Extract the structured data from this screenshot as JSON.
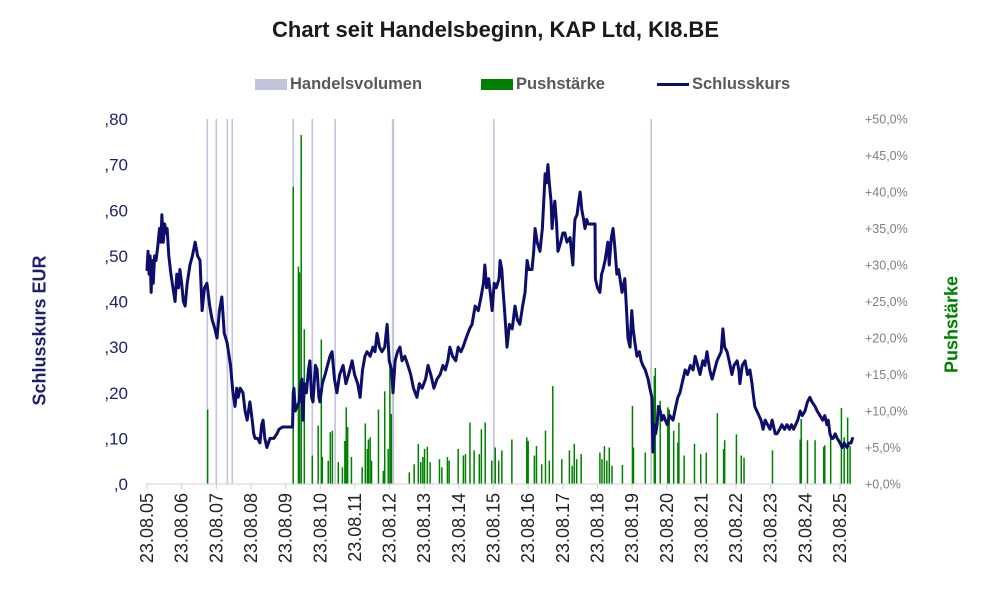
{
  "chart_data": {
    "type": "line",
    "title": "Chart seit Handelsbeginn, KAP Ltd, KI8.BE",
    "grid": false,
    "legend": {
      "position": "top",
      "items": [
        {
          "label": "Handelsvolumen",
          "kind": "swatch",
          "color": "#c3c3dc"
        },
        {
          "label": "Pushstärke",
          "kind": "swatch",
          "color": "#008000"
        },
        {
          "label": "Schlusskurs",
          "kind": "line",
          "color": "#0d0d6b"
        }
      ]
    },
    "x_axis": {
      "label": "",
      "range": [
        2005.64,
        2026.0
      ],
      "ticks": [
        2005.64,
        2006.64,
        2007.64,
        2008.64,
        2009.64,
        2010.64,
        2011.64,
        2012.64,
        2013.64,
        2014.64,
        2015.64,
        2016.64,
        2017.64,
        2018.64,
        2019.64,
        2020.64,
        2021.64,
        2022.64,
        2023.64,
        2024.64,
        2025.64
      ],
      "tick_labels": [
        "23.08.05",
        "23.08.06",
        "23.08.07",
        "23.08.08",
        "23.08.09",
        "23.08.10",
        "23.08.11",
        "23.08.12",
        "23.08.13",
        "23.08.14",
        "23.08.15",
        "23.08.16",
        "23.08.17",
        "23.08.18",
        "23.08.19",
        "23.08.20",
        "23.08.21",
        "23.08.22",
        "23.08.23",
        "23.08.24",
        "23.08.25"
      ]
    },
    "y_axis_left": {
      "label": "Schlusskurs EUR",
      "range": [
        0,
        0.8
      ],
      "ticks": [
        0,
        0.1,
        0.2,
        0.3,
        0.4,
        0.5,
        0.6,
        0.7,
        0.8
      ],
      "tick_labels": [
        ",0",
        ",10",
        ",20",
        ",30",
        ",40",
        ",50",
        ",60",
        ",70",
        ",80"
      ]
    },
    "y_axis_right": {
      "label": "Pushstärke",
      "range": [
        0,
        50
      ],
      "ticks": [
        0,
        5,
        10,
        15,
        20,
        25,
        30,
        35,
        40,
        45,
        50
      ],
      "tick_labels": [
        "+0,0%",
        "+5,0%",
        "+10,0%",
        "+15,0%",
        "+20,0%",
        "+25,0%",
        "+30,0%",
        "+35,0%",
        "+40,0%",
        "+45,0%",
        "+50,0%"
      ]
    },
    "series": [
      {
        "name": "Handelsvolumen",
        "type": "bar",
        "axis": "none",
        "color": "#c3c3dc",
        "clipped_at_top": true,
        "x": [
          2007.38,
          2007.64,
          2007.96,
          2008.1,
          2009.86,
          2010.41,
          2011.07,
          2012.73,
          2012.75,
          2015.65,
          2020.19
        ]
      },
      {
        "name": "Pushstärke",
        "type": "bar",
        "axis": "right",
        "color": "#008000",
        "x": [
          2007.39,
          2009.86,
          2010.01,
          2010.04,
          2010.09,
          2010.18,
          2010.41,
          2010.58,
          2010.67,
          2010.7,
          2010.87,
          2010.93,
          2010.99,
          2011.16,
          2011.28,
          2011.35,
          2011.39,
          2011.43,
          2011.54,
          2011.85,
          2011.94,
          2012.0,
          2012.03,
          2012.08,
          2012.12,
          2012.32,
          2012.46,
          2012.5,
          2012.6,
          2012.65,
          2012.69,
          2013.21,
          2013.35,
          2013.47,
          2013.54,
          2013.6,
          2013.65,
          2013.73,
          2013.81,
          2014.08,
          2014.15,
          2014.31,
          2014.36,
          2014.62,
          2014.77,
          2014.83,
          2014.96,
          2015.08,
          2015.23,
          2015.29,
          2015.4,
          2015.59,
          2015.69,
          2015.79,
          2015.88,
          2016.17,
          2016.6,
          2016.64,
          2016.82,
          2016.88,
          2017.03,
          2017.14,
          2017.25,
          2017.35,
          2017.61,
          2017.83,
          2017.91,
          2017.97,
          2018.04,
          2018.17,
          2018.71,
          2018.77,
          2018.84,
          2018.91,
          2018.98,
          2019.06,
          2019.36,
          2019.65,
          2019.68,
          2020.02,
          2020.28,
          2020.31,
          2020.45,
          2020.67,
          2020.71,
          2020.84,
          2020.96,
          2020.99,
          2021.14,
          2021.44,
          2021.62,
          2021.78,
          2022.1,
          2022.28,
          2022.31,
          2022.65,
          2022.79,
          2022.87,
          2023.69,
          2024.49,
          2024.52,
          2024.7,
          2024.92,
          2025.17,
          2025.2,
          2025.37,
          2025.68,
          2025.76,
          2025.86,
          2025.93
        ],
        "y": [
          10.2,
          40.7,
          29.8,
          29.0,
          47.8,
          21.2,
          3.9,
          8.0,
          19.8,
          3.7,
          3.2,
          7.1,
          7.3,
          3.0,
          2.3,
          5.9,
          10.5,
          7.8,
          3.7,
          2.3,
          8.3,
          4.8,
          6.1,
          6.4,
          3.2,
          10.2,
          1.8,
          12.7,
          4.8,
          17.1,
          9.6,
          1.6,
          2.7,
          5.5,
          3.0,
          3.7,
          4.8,
          5.1,
          3.0,
          3.4,
          2.3,
          3.7,
          3.2,
          4.8,
          3.9,
          4.1,
          8.4,
          4.6,
          4.1,
          7.5,
          8.4,
          3.2,
          5.0,
          3.2,
          4.6,
          6.1,
          6.4,
          5.9,
          3.9,
          5.2,
          2.7,
          7.3,
          3.2,
          13.4,
          3.4,
          4.6,
          2.5,
          5.5,
          3.4,
          4.1,
          4.3,
          3.4,
          5.2,
          3.2,
          5.0,
          2.5,
          2.6,
          10.7,
          5.0,
          4.3,
          14.8,
          15.9,
          11.4,
          10.5,
          10.2,
          7.3,
          5.7,
          8.4,
          3.9,
          5.5,
          4.1,
          4.3,
          9.7,
          4.8,
          6.0,
          6.8,
          3.9,
          3.6,
          4.6,
          6.1,
          8.9,
          6.0,
          6.0,
          5.1,
          5.3,
          6.4,
          10.4,
          6.4,
          9.1,
          5.2
        ]
      },
      {
        "name": "Schlusskurs",
        "type": "line",
        "axis": "left",
        "color": "#0d0d6b",
        "x": [
          2005.64,
          2005.67,
          2005.7,
          2005.73,
          2005.76,
          2005.79,
          2005.82,
          2005.86,
          2005.9,
          2005.95,
          2006.0,
          2006.04,
          2006.07,
          2006.11,
          2006.15,
          2006.19,
          2006.22,
          2006.27,
          2006.33,
          2006.39,
          2006.45,
          2006.5,
          2006.55,
          2006.59,
          2006.64,
          2006.69,
          2006.74,
          2006.8,
          2006.88,
          2006.95,
          2007.03,
          2007.1,
          2007.17,
          2007.23,
          2007.3,
          2007.37,
          2007.45,
          2007.52,
          2007.6,
          2007.66,
          2007.73,
          2007.8,
          2007.87,
          2007.95,
          2008.05,
          2008.12,
          2008.18,
          2008.23,
          2008.27,
          2008.33,
          2008.41,
          2008.47,
          2008.53,
          2008.61,
          2008.66,
          2008.72,
          2008.76,
          2008.83,
          2008.9,
          2008.95,
          2008.99,
          2009.04,
          2009.1,
          2009.19,
          2009.3,
          2009.39,
          2009.45,
          2009.56,
          2009.7,
          2009.84,
          2009.86,
          2009.88,
          2009.92,
          2009.97,
          2010.03,
          2010.08,
          2010.11,
          2010.14,
          2010.18,
          2010.24,
          2010.3,
          2010.34,
          2010.39,
          2010.43,
          2010.5,
          2010.55,
          2010.6,
          2010.63,
          2010.7,
          2010.78,
          2010.85,
          2010.92,
          2010.98,
          2011.05,
          2011.12,
          2011.2,
          2011.3,
          2011.38,
          2011.46,
          2011.56,
          2011.63,
          2011.72,
          2011.79,
          2011.86,
          2011.93,
          2011.99,
          2012.08,
          2012.16,
          2012.22,
          2012.28,
          2012.35,
          2012.42,
          2012.5,
          2012.57,
          2012.63,
          2012.7,
          2012.74,
          2012.8,
          2012.87,
          2012.94,
          2013.0,
          2013.08,
          2013.17,
          2013.25,
          2013.33,
          2013.43,
          2013.5,
          2013.58,
          2013.68,
          2013.75,
          2013.83,
          2013.92,
          2014.01,
          2014.1,
          2014.18,
          2014.25,
          2014.32,
          2014.38,
          2014.46,
          2014.55,
          2014.62,
          2014.7,
          2014.76,
          2014.85,
          2014.95,
          2015.02,
          2015.11,
          2015.2,
          2015.28,
          2015.35,
          2015.39,
          2015.44,
          2015.5,
          2015.56,
          2015.6,
          2015.66,
          2015.72,
          2015.8,
          2015.83,
          2015.88,
          2015.91,
          2015.96,
          2016.03,
          2016.1,
          2016.18,
          2016.26,
          2016.33,
          2016.4,
          2016.48,
          2016.55,
          2016.61,
          2016.66,
          2016.75,
          2016.8,
          2016.84,
          2016.9,
          2016.98,
          2017.05,
          2017.13,
          2017.17,
          2017.21,
          2017.25,
          2017.3,
          2017.33,
          2017.37,
          2017.41,
          2017.46,
          2017.5,
          2017.58,
          2017.64,
          2017.7,
          2017.76,
          2017.85,
          2017.93,
          2017.96,
          2017.99,
          2018.05,
          2018.1,
          2018.14,
          2018.19,
          2018.24,
          2018.28,
          2018.33,
          2018.37,
          2018.45,
          2018.57,
          2018.58,
          2018.64,
          2018.71,
          2018.76,
          2018.8,
          2018.86,
          2018.94,
          2018.98,
          2019.04,
          2019.09,
          2019.14,
          2019.2,
          2019.25,
          2019.29,
          2019.35,
          2019.43,
          2019.48,
          2019.52,
          2019.58,
          2019.63,
          2019.67,
          2019.72,
          2019.78,
          2019.85,
          2019.9,
          2019.95,
          2020.02,
          2020.1,
          2020.15,
          2020.21,
          2020.24,
          2020.28,
          2020.32,
          2020.36,
          2020.4,
          2020.45,
          2020.5,
          2020.55,
          2020.65,
          2020.73,
          2020.82,
          2020.9,
          2020.96,
          2021.02,
          2021.08,
          2021.17,
          2021.24,
          2021.32,
          2021.4,
          2021.46,
          2021.53,
          2021.6,
          2021.68,
          2021.74,
          2021.8,
          2021.88,
          2021.95,
          2022.02,
          2022.09,
          2022.15,
          2022.21,
          2022.26,
          2022.31,
          2022.38,
          2022.44,
          2022.52,
          2022.58,
          2022.67,
          2022.72,
          2022.75,
          2022.82,
          2022.9,
          2022.97,
          2023.04,
          2023.1,
          2023.13,
          2023.18,
          2023.24,
          2023.3,
          2023.36,
          2023.42,
          2023.48,
          2023.55,
          2023.62,
          2023.68,
          2023.71,
          2023.77,
          2023.82,
          2023.9,
          2023.96,
          2024.04,
          2024.11,
          2024.18,
          2024.24,
          2024.3,
          2024.36,
          2024.42,
          2024.49,
          2024.55,
          2024.63,
          2024.7,
          2024.77,
          2024.83,
          2024.92,
          2024.98,
          2025.06,
          2025.14,
          2025.2,
          2025.26,
          2025.3,
          2025.35,
          2025.4,
          2025.44,
          2025.5,
          2025.56,
          2025.64,
          2025.7,
          2025.76,
          2025.84,
          2025.9,
          2025.96,
          2026.0
        ],
        "y": [
          0.47,
          0.51,
          0.46,
          0.5,
          0.42,
          0.49,
          0.44,
          0.5,
          0.49,
          0.52,
          0.56,
          0.53,
          0.59,
          0.53,
          0.57,
          0.55,
          0.56,
          0.5,
          0.46,
          0.43,
          0.4,
          0.46,
          0.43,
          0.47,
          0.44,
          0.4,
          0.39,
          0.44,
          0.48,
          0.5,
          0.53,
          0.5,
          0.49,
          0.38,
          0.43,
          0.44,
          0.39,
          0.36,
          0.34,
          0.32,
          0.38,
          0.41,
          0.33,
          0.31,
          0.26,
          0.2,
          0.17,
          0.21,
          0.19,
          0.21,
          0.2,
          0.16,
          0.14,
          0.18,
          0.15,
          0.11,
          0.1,
          0.1,
          0.09,
          0.13,
          0.14,
          0.1,
          0.08,
          0.1,
          0.1,
          0.11,
          0.12,
          0.125,
          0.125,
          0.125,
          0.2,
          0.21,
          0.16,
          0.17,
          0.18,
          0.22,
          0.23,
          0.14,
          0.22,
          0.2,
          0.25,
          0.27,
          0.19,
          0.18,
          0.26,
          0.25,
          0.19,
          0.18,
          0.22,
          0.24,
          0.26,
          0.28,
          0.29,
          0.23,
          0.2,
          0.24,
          0.26,
          0.22,
          0.24,
          0.27,
          0.24,
          0.22,
          0.19,
          0.25,
          0.28,
          0.29,
          0.28,
          0.3,
          0.29,
          0.33,
          0.3,
          0.29,
          0.3,
          0.35,
          0.27,
          0.25,
          0.2,
          0.27,
          0.29,
          0.3,
          0.27,
          0.28,
          0.26,
          0.24,
          0.21,
          0.19,
          0.22,
          0.21,
          0.23,
          0.26,
          0.24,
          0.21,
          0.23,
          0.24,
          0.26,
          0.25,
          0.27,
          0.3,
          0.28,
          0.27,
          0.3,
          0.29,
          0.3,
          0.32,
          0.34,
          0.35,
          0.39,
          0.38,
          0.41,
          0.44,
          0.48,
          0.43,
          0.45,
          0.41,
          0.38,
          0.44,
          0.43,
          0.45,
          0.49,
          0.47,
          0.43,
          0.38,
          0.3,
          0.35,
          0.34,
          0.39,
          0.36,
          0.35,
          0.39,
          0.42,
          0.49,
          0.47,
          0.47,
          0.51,
          0.56,
          0.53,
          0.51,
          0.56,
          0.68,
          0.66,
          0.7,
          0.66,
          0.62,
          0.56,
          0.6,
          0.62,
          0.57,
          0.51,
          0.53,
          0.55,
          0.55,
          0.53,
          0.54,
          0.48,
          0.54,
          0.58,
          0.59,
          0.62,
          0.64,
          0.6,
          0.58,
          0.56,
          0.58,
          0.57,
          0.57,
          0.57,
          0.45,
          0.43,
          0.42,
          0.46,
          0.47,
          0.49,
          0.53,
          0.48,
          0.54,
          0.56,
          0.52,
          0.46,
          0.47,
          0.45,
          0.42,
          0.45,
          0.38,
          0.32,
          0.3,
          0.38,
          0.34,
          0.31,
          0.28,
          0.29,
          0.27,
          0.26,
          0.25,
          0.23,
          0.21,
          0.19,
          0.07,
          0.13,
          0.11,
          0.13,
          0.17,
          0.16,
          0.14,
          0.15,
          0.13,
          0.15,
          0.14,
          0.17,
          0.19,
          0.2,
          0.22,
          0.25,
          0.24,
          0.26,
          0.25,
          0.28,
          0.26,
          0.24,
          0.27,
          0.26,
          0.29,
          0.25,
          0.23,
          0.25,
          0.27,
          0.28,
          0.29,
          0.34,
          0.3,
          0.29,
          0.27,
          0.24,
          0.26,
          0.27,
          0.25,
          0.22,
          0.26,
          0.27,
          0.24,
          0.25,
          0.22,
          0.2,
          0.17,
          0.16,
          0.15,
          0.14,
          0.12,
          0.14,
          0.13,
          0.12,
          0.14,
          0.13,
          0.11,
          0.11,
          0.12,
          0.13,
          0.12,
          0.13,
          0.12,
          0.13,
          0.12,
          0.13,
          0.14,
          0.16,
          0.15,
          0.16,
          0.18,
          0.19,
          0.18,
          0.17,
          0.16,
          0.15,
          0.14,
          0.15,
          0.13,
          0.14,
          0.11,
          0.1,
          0.1,
          0.11,
          0.1,
          0.09,
          0.08,
          0.09,
          0.08,
          0.09,
          0.09,
          0.1
        ]
      }
    ]
  }
}
